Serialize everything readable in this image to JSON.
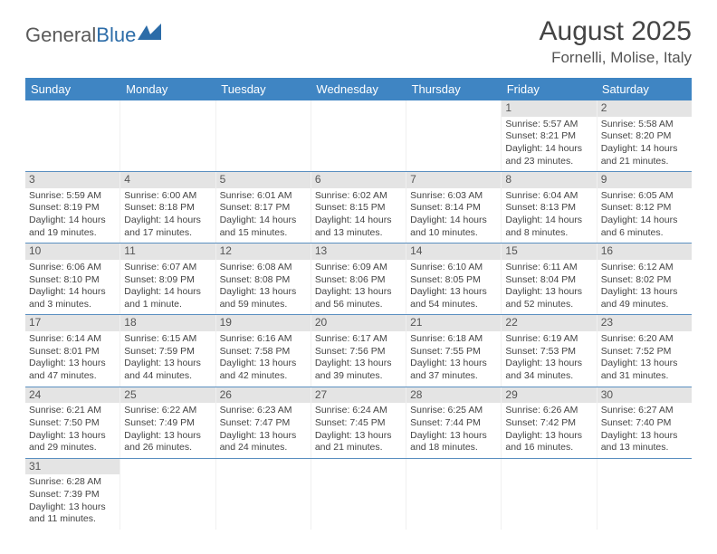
{
  "logo": {
    "text1": "General",
    "text2": "Blue"
  },
  "title": "August 2025",
  "location": "Fornelli, Molise, Italy",
  "headers": [
    "Sunday",
    "Monday",
    "Tuesday",
    "Wednesday",
    "Thursday",
    "Friday",
    "Saturday"
  ],
  "colors": {
    "header_bg": "#3f85c3",
    "daynum_bg": "#e4e4e4",
    "week_border": "#5a8fc0"
  },
  "days": [
    {
      "n": "",
      "sr": "",
      "ss": "",
      "dl": ""
    },
    {
      "n": "",
      "sr": "",
      "ss": "",
      "dl": ""
    },
    {
      "n": "",
      "sr": "",
      "ss": "",
      "dl": ""
    },
    {
      "n": "",
      "sr": "",
      "ss": "",
      "dl": ""
    },
    {
      "n": "",
      "sr": "",
      "ss": "",
      "dl": ""
    },
    {
      "n": "1",
      "sr": "Sunrise: 5:57 AM",
      "ss": "Sunset: 8:21 PM",
      "dl": "Daylight: 14 hours and 23 minutes."
    },
    {
      "n": "2",
      "sr": "Sunrise: 5:58 AM",
      "ss": "Sunset: 8:20 PM",
      "dl": "Daylight: 14 hours and 21 minutes."
    },
    {
      "n": "3",
      "sr": "Sunrise: 5:59 AM",
      "ss": "Sunset: 8:19 PM",
      "dl": "Daylight: 14 hours and 19 minutes."
    },
    {
      "n": "4",
      "sr": "Sunrise: 6:00 AM",
      "ss": "Sunset: 8:18 PM",
      "dl": "Daylight: 14 hours and 17 minutes."
    },
    {
      "n": "5",
      "sr": "Sunrise: 6:01 AM",
      "ss": "Sunset: 8:17 PM",
      "dl": "Daylight: 14 hours and 15 minutes."
    },
    {
      "n": "6",
      "sr": "Sunrise: 6:02 AM",
      "ss": "Sunset: 8:15 PM",
      "dl": "Daylight: 14 hours and 13 minutes."
    },
    {
      "n": "7",
      "sr": "Sunrise: 6:03 AM",
      "ss": "Sunset: 8:14 PM",
      "dl": "Daylight: 14 hours and 10 minutes."
    },
    {
      "n": "8",
      "sr": "Sunrise: 6:04 AM",
      "ss": "Sunset: 8:13 PM",
      "dl": "Daylight: 14 hours and 8 minutes."
    },
    {
      "n": "9",
      "sr": "Sunrise: 6:05 AM",
      "ss": "Sunset: 8:12 PM",
      "dl": "Daylight: 14 hours and 6 minutes."
    },
    {
      "n": "10",
      "sr": "Sunrise: 6:06 AM",
      "ss": "Sunset: 8:10 PM",
      "dl": "Daylight: 14 hours and 3 minutes."
    },
    {
      "n": "11",
      "sr": "Sunrise: 6:07 AM",
      "ss": "Sunset: 8:09 PM",
      "dl": "Daylight: 14 hours and 1 minute."
    },
    {
      "n": "12",
      "sr": "Sunrise: 6:08 AM",
      "ss": "Sunset: 8:08 PM",
      "dl": "Daylight: 13 hours and 59 minutes."
    },
    {
      "n": "13",
      "sr": "Sunrise: 6:09 AM",
      "ss": "Sunset: 8:06 PM",
      "dl": "Daylight: 13 hours and 56 minutes."
    },
    {
      "n": "14",
      "sr": "Sunrise: 6:10 AM",
      "ss": "Sunset: 8:05 PM",
      "dl": "Daylight: 13 hours and 54 minutes."
    },
    {
      "n": "15",
      "sr": "Sunrise: 6:11 AM",
      "ss": "Sunset: 8:04 PM",
      "dl": "Daylight: 13 hours and 52 minutes."
    },
    {
      "n": "16",
      "sr": "Sunrise: 6:12 AM",
      "ss": "Sunset: 8:02 PM",
      "dl": "Daylight: 13 hours and 49 minutes."
    },
    {
      "n": "17",
      "sr": "Sunrise: 6:14 AM",
      "ss": "Sunset: 8:01 PM",
      "dl": "Daylight: 13 hours and 47 minutes."
    },
    {
      "n": "18",
      "sr": "Sunrise: 6:15 AM",
      "ss": "Sunset: 7:59 PM",
      "dl": "Daylight: 13 hours and 44 minutes."
    },
    {
      "n": "19",
      "sr": "Sunrise: 6:16 AM",
      "ss": "Sunset: 7:58 PM",
      "dl": "Daylight: 13 hours and 42 minutes."
    },
    {
      "n": "20",
      "sr": "Sunrise: 6:17 AM",
      "ss": "Sunset: 7:56 PM",
      "dl": "Daylight: 13 hours and 39 minutes."
    },
    {
      "n": "21",
      "sr": "Sunrise: 6:18 AM",
      "ss": "Sunset: 7:55 PM",
      "dl": "Daylight: 13 hours and 37 minutes."
    },
    {
      "n": "22",
      "sr": "Sunrise: 6:19 AM",
      "ss": "Sunset: 7:53 PM",
      "dl": "Daylight: 13 hours and 34 minutes."
    },
    {
      "n": "23",
      "sr": "Sunrise: 6:20 AM",
      "ss": "Sunset: 7:52 PM",
      "dl": "Daylight: 13 hours and 31 minutes."
    },
    {
      "n": "24",
      "sr": "Sunrise: 6:21 AM",
      "ss": "Sunset: 7:50 PM",
      "dl": "Daylight: 13 hours and 29 minutes."
    },
    {
      "n": "25",
      "sr": "Sunrise: 6:22 AM",
      "ss": "Sunset: 7:49 PM",
      "dl": "Daylight: 13 hours and 26 minutes."
    },
    {
      "n": "26",
      "sr": "Sunrise: 6:23 AM",
      "ss": "Sunset: 7:47 PM",
      "dl": "Daylight: 13 hours and 24 minutes."
    },
    {
      "n": "27",
      "sr": "Sunrise: 6:24 AM",
      "ss": "Sunset: 7:45 PM",
      "dl": "Daylight: 13 hours and 21 minutes."
    },
    {
      "n": "28",
      "sr": "Sunrise: 6:25 AM",
      "ss": "Sunset: 7:44 PM",
      "dl": "Daylight: 13 hours and 18 minutes."
    },
    {
      "n": "29",
      "sr": "Sunrise: 6:26 AM",
      "ss": "Sunset: 7:42 PM",
      "dl": "Daylight: 13 hours and 16 minutes."
    },
    {
      "n": "30",
      "sr": "Sunrise: 6:27 AM",
      "ss": "Sunset: 7:40 PM",
      "dl": "Daylight: 13 hours and 13 minutes."
    },
    {
      "n": "31",
      "sr": "Sunrise: 6:28 AM",
      "ss": "Sunset: 7:39 PM",
      "dl": "Daylight: 13 hours and 11 minutes."
    },
    {
      "n": "",
      "sr": "",
      "ss": "",
      "dl": ""
    },
    {
      "n": "",
      "sr": "",
      "ss": "",
      "dl": ""
    },
    {
      "n": "",
      "sr": "",
      "ss": "",
      "dl": ""
    },
    {
      "n": "",
      "sr": "",
      "ss": "",
      "dl": ""
    },
    {
      "n": "",
      "sr": "",
      "ss": "",
      "dl": ""
    },
    {
      "n": "",
      "sr": "",
      "ss": "",
      "dl": ""
    }
  ]
}
